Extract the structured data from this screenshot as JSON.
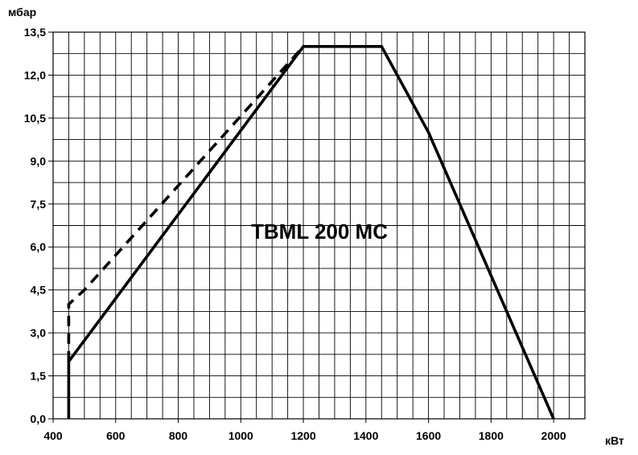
{
  "chart_data": {
    "type": "line",
    "title": "TBML 200 MC",
    "ylabel": "мбар",
    "xlabel": "кВт",
    "xlim": [
      400,
      2100
    ],
    "ylim": [
      0,
      13.5
    ],
    "grid": true,
    "x_ticks": [
      {
        "value": 400,
        "label": "400"
      },
      {
        "value": 600,
        "label": "600"
      },
      {
        "value": 800,
        "label": "800"
      },
      {
        "value": 1000,
        "label": "1000"
      },
      {
        "value": 1200,
        "label": "1200"
      },
      {
        "value": 1400,
        "label": "1400"
      },
      {
        "value": 1600,
        "label": "1600"
      },
      {
        "value": 1800,
        "label": "1800"
      },
      {
        "value": 2000,
        "label": "2000"
      }
    ],
    "y_ticks": [
      {
        "value": 0,
        "label": "0,0"
      },
      {
        "value": 1.5,
        "label": "1,5"
      },
      {
        "value": 3,
        "label": "3,0"
      },
      {
        "value": 4.5,
        "label": "4,5"
      },
      {
        "value": 6,
        "label": "6,0"
      },
      {
        "value": 7.5,
        "label": "7,5"
      },
      {
        "value": 9,
        "label": "9,0"
      },
      {
        "value": 10.5,
        "label": "10,5"
      },
      {
        "value": 12,
        "label": "12,0"
      },
      {
        "value": 13.5,
        "label": "13,5"
      }
    ],
    "series": [
      {
        "style": "solid",
        "color": "#000000",
        "points": [
          [
            450,
            0
          ],
          [
            450,
            2.0
          ],
          [
            1200,
            13.0
          ],
          [
            1450,
            13.0
          ],
          [
            1600,
            10.0
          ],
          [
            2000,
            0
          ]
        ]
      },
      {
        "style": "dashed",
        "color": "#000000",
        "points": [
          [
            450,
            2.0
          ],
          [
            450,
            4.0
          ],
          [
            500,
            4.5
          ],
          [
            1200,
            13.0
          ]
        ]
      }
    ]
  }
}
